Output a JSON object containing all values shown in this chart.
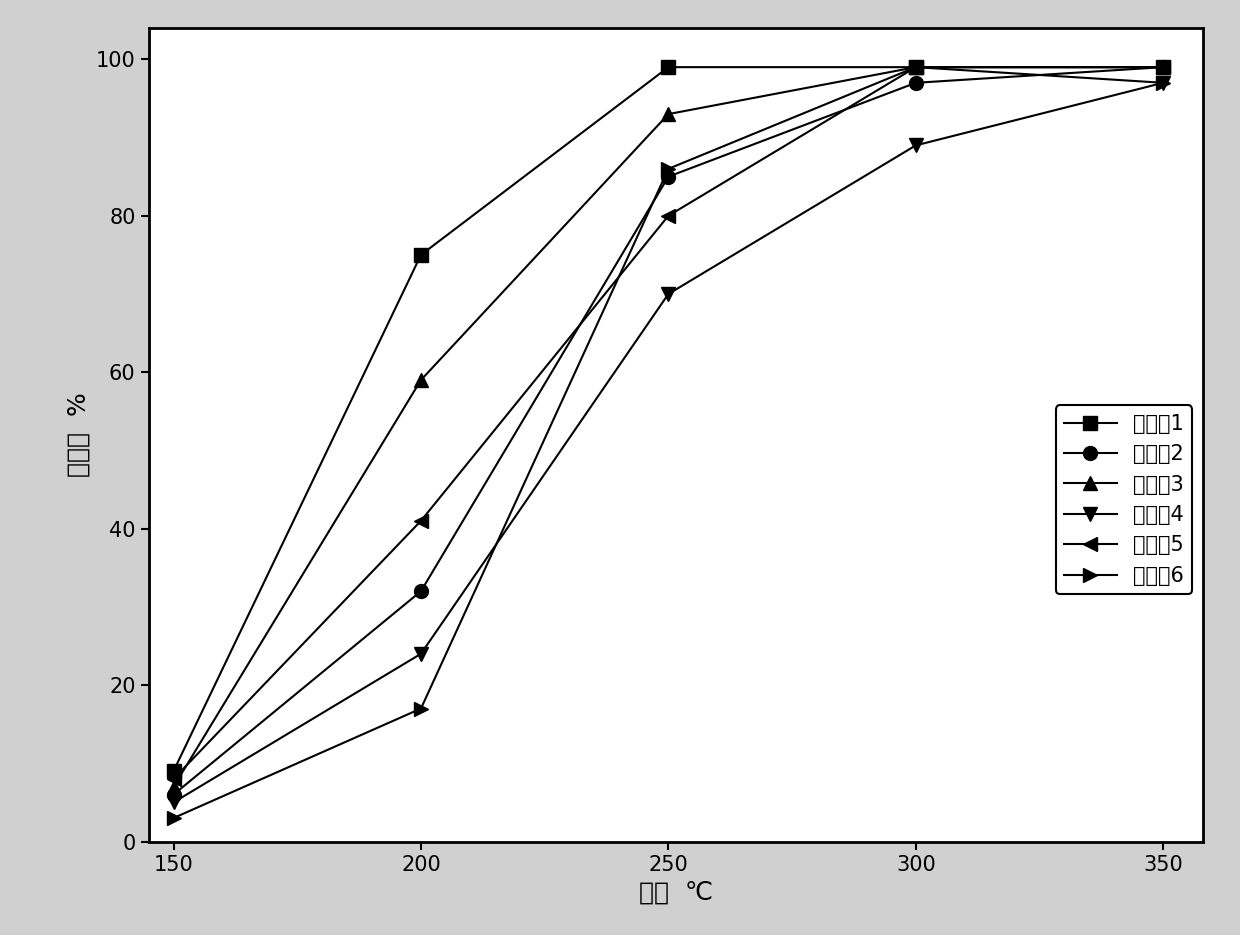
{
  "series": [
    {
      "label": "实施例1",
      "x": [
        150,
        200,
        250,
        300,
        350
      ],
      "y": [
        9,
        75,
        99,
        99,
        99
      ],
      "marker": "s",
      "markersize": 10
    },
    {
      "label": "实施例2",
      "x": [
        150,
        200,
        250,
        300,
        350
      ],
      "y": [
        6,
        32,
        85,
        97,
        99
      ],
      "marker": "o",
      "markersize": 10
    },
    {
      "label": "实施例3",
      "x": [
        150,
        200,
        250,
        300,
        350
      ],
      "y": [
        7,
        59,
        93,
        99,
        99
      ],
      "marker": "^",
      "markersize": 10
    },
    {
      "label": "实施例4",
      "x": [
        150,
        200,
        250,
        300,
        350
      ],
      "y": [
        5,
        24,
        70,
        89,
        97
      ],
      "marker": "v",
      "markersize": 10
    },
    {
      "label": "实施例5",
      "x": [
        150,
        200,
        250,
        300,
        350
      ],
      "y": [
        8,
        41,
        80,
        99,
        99
      ],
      "marker": "<",
      "markersize": 10
    },
    {
      "label": "实施例6",
      "x": [
        150,
        200,
        250,
        300,
        350
      ],
      "y": [
        3,
        17,
        86,
        99,
        97
      ],
      "marker": ">",
      "markersize": 10
    }
  ],
  "xlabel": "温度  ℃",
  "ylabel": "转化率  %",
  "xlim": [
    145,
    358
  ],
  "ylim": [
    0,
    104
  ],
  "xticks": [
    150,
    200,
    250,
    300,
    350
  ],
  "yticks": [
    0,
    20,
    40,
    60,
    80,
    100
  ],
  "color": "#000000",
  "linewidth": 1.5,
  "legend_fontsize": 15,
  "axis_label_fontsize": 18,
  "tick_fontsize": 15,
  "figure_facecolor": "#d0d0d0",
  "axes_facecolor": "#ffffff"
}
